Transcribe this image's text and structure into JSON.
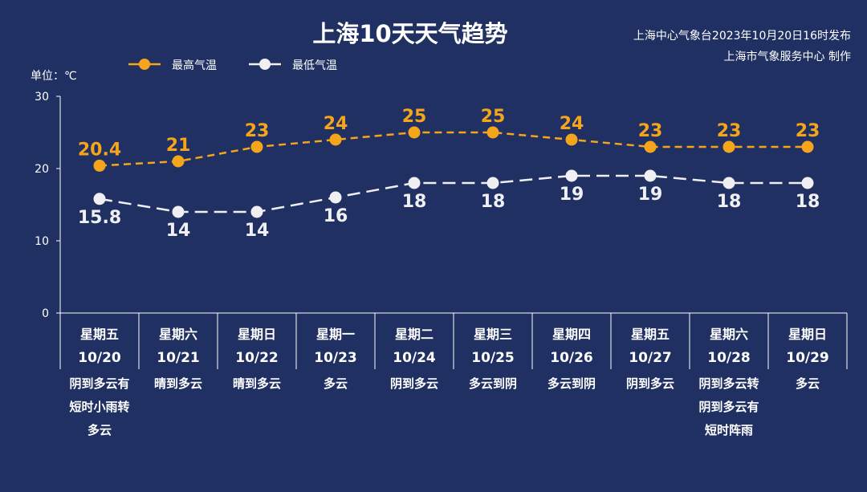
{
  "title": "上海10天天气趋势",
  "source_line1": "上海中心气象台2023年10月20日16时发布",
  "source_line2": "上海市气象服务中心 制作",
  "unit": "单位：℃",
  "chart_data": {
    "type": "line",
    "title": "上海10天天气趋势",
    "ylim": [
      0,
      30
    ],
    "yticks": [
      0,
      10,
      20,
      30
    ],
    "legend_position": "top-left",
    "grid": false,
    "days": [
      {
        "weekday": "星期五",
        "date": "10/20",
        "weather": [
          "阴到多云有",
          "短时小雨转",
          "多云"
        ]
      },
      {
        "weekday": "星期六",
        "date": "10/21",
        "weather": [
          "晴到多云"
        ]
      },
      {
        "weekday": "星期日",
        "date": "10/22",
        "weather": [
          "晴到多云"
        ]
      },
      {
        "weekday": "星期一",
        "date": "10/23",
        "weather": [
          "多云"
        ]
      },
      {
        "weekday": "星期二",
        "date": "10/24",
        "weather": [
          "阴到多云"
        ]
      },
      {
        "weekday": "星期三",
        "date": "10/25",
        "weather": [
          "多云到阴"
        ]
      },
      {
        "weekday": "星期四",
        "date": "10/26",
        "weather": [
          "多云到阴"
        ]
      },
      {
        "weekday": "星期五",
        "date": "10/27",
        "weather": [
          "阴到多云"
        ]
      },
      {
        "weekday": "星期六",
        "date": "10/28",
        "weather": [
          "阴到多云转",
          "阴到多云有",
          "短时阵雨"
        ]
      },
      {
        "weekday": "星期日",
        "date": "10/29",
        "weather": [
          "多云"
        ]
      }
    ],
    "series": [
      {
        "name": "最高气温",
        "color": "#f4a51c",
        "values": [
          20.4,
          21,
          23,
          24,
          25,
          25,
          24,
          23,
          23,
          23
        ],
        "labels": [
          "20.4",
          "21",
          "23",
          "24",
          "25",
          "25",
          "24",
          "23",
          "23",
          "23"
        ]
      },
      {
        "name": "最低气温",
        "color": "#f0f0f4",
        "values": [
          15.8,
          14,
          14,
          16,
          18,
          18,
          19,
          19,
          18,
          18
        ],
        "labels": [
          "15.8",
          "14",
          "14",
          "16",
          "18",
          "18",
          "19",
          "19",
          "18",
          "18"
        ]
      }
    ]
  }
}
